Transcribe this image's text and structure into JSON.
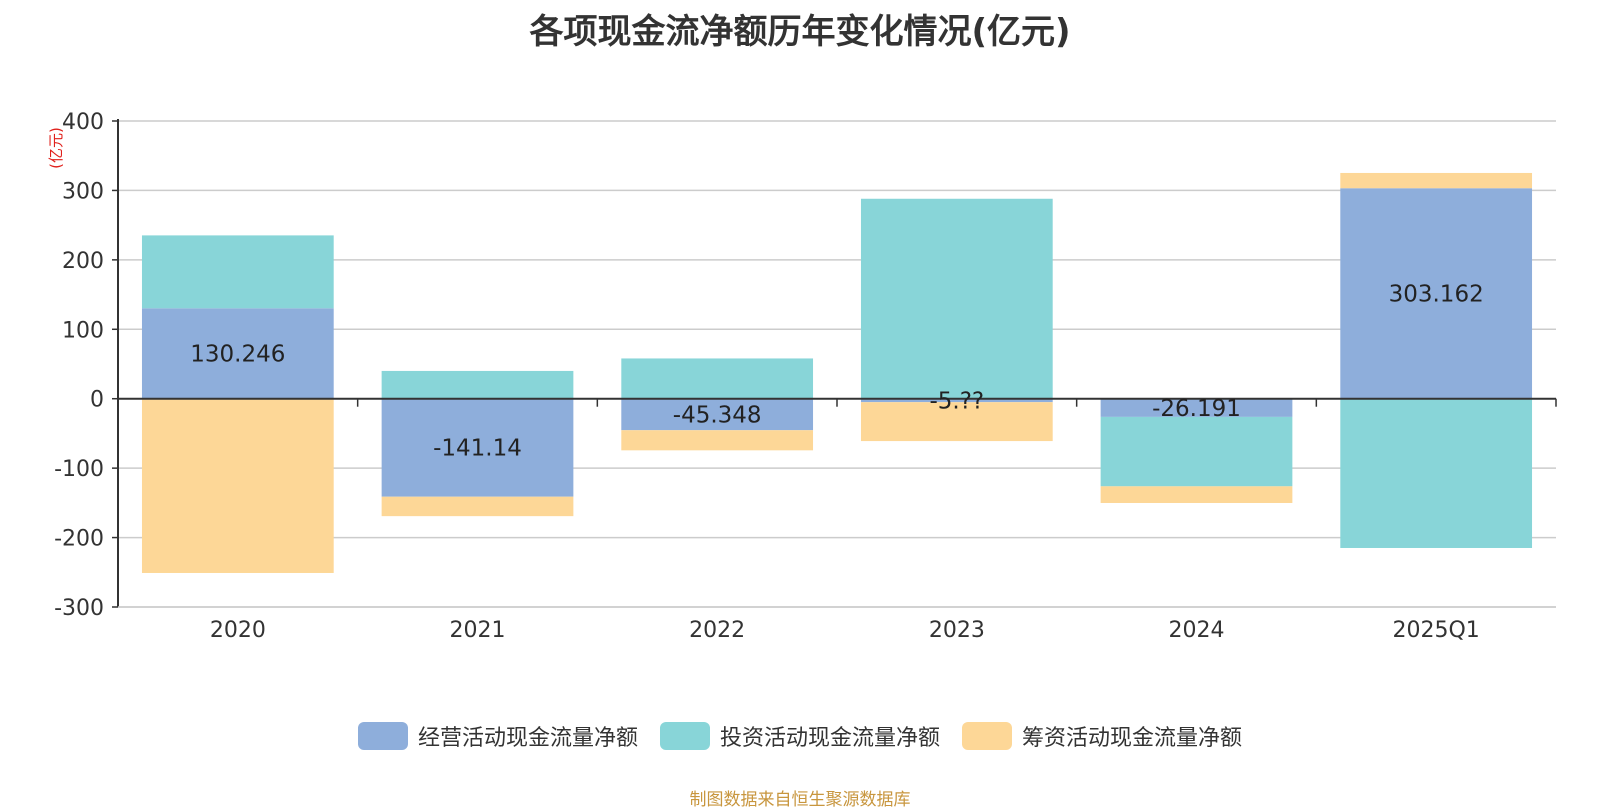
{
  "chart_data": {
    "type": "bar",
    "stacked": true,
    "title": "各项现金流净额历年变化情况(亿元)",
    "ylabel": "(亿元)",
    "xlabel": "",
    "ylim": [
      -300,
      400
    ],
    "yticks": [
      400,
      300,
      200,
      100,
      0,
      -100,
      -200,
      -300
    ],
    "categories": [
      "2020",
      "2021",
      "2022",
      "2023",
      "2024",
      "2025Q1"
    ],
    "series": [
      {
        "name": "经营活动现金流量净额",
        "color": "#8eaedb",
        "values": [
          130.246,
          -141.14,
          -45.348,
          -5,
          -26.191,
          303.162
        ],
        "labels": [
          "130.246",
          "-141.14",
          "-45.348",
          "-5.??",
          "-26.191",
          "303.162"
        ]
      },
      {
        "name": "投资活动现金流量净额",
        "color": "#88d5d8",
        "values": [
          105,
          40,
          58,
          288,
          -100,
          -215
        ]
      },
      {
        "name": "筹资活动现金流量净额",
        "color": "#fdd797",
        "values": [
          -251,
          -28,
          -29,
          -56,
          -24,
          22
        ]
      }
    ],
    "legend_position": "bottom",
    "source": "制图数据来自恒生聚源数据库"
  }
}
